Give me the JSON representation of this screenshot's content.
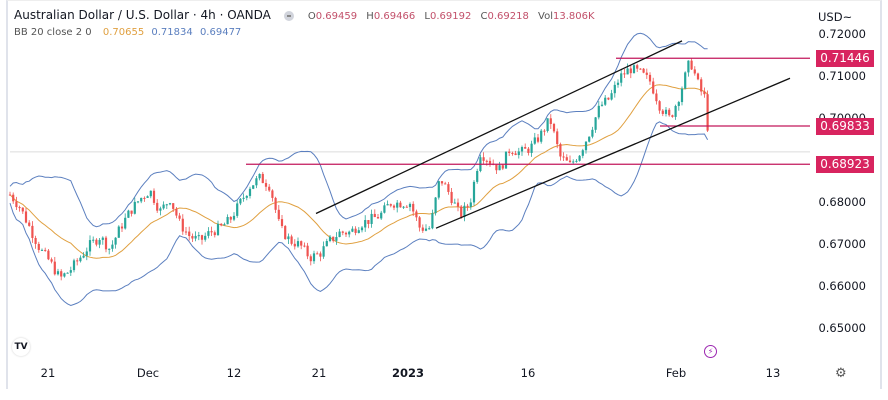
{
  "header": {
    "title": "Australian Dollar / U.S. Dollar · 4h · OANDA",
    "ohlc": {
      "o_label": "O",
      "o": "0.69459",
      "h_label": "H",
      "h": "0.69466",
      "l_label": "L",
      "l": "0.69192",
      "c_label": "C",
      "c": "0.69218",
      "vol_label": "Vol",
      "vol": "13.806K"
    },
    "indicator": {
      "label": "BB 20 close 2 0",
      "basis": "0.70655",
      "upper": "0.71834",
      "lower": "0.69477"
    }
  },
  "y_axis": {
    "currency": "USD~",
    "ticks": [
      {
        "label": "0.72000",
        "value": 0.72
      },
      {
        "label": "0.71000",
        "value": 0.71
      },
      {
        "label": "0.70000",
        "value": 0.7
      },
      {
        "label": "0.68000",
        "value": 0.68
      },
      {
        "label": "0.67000",
        "value": 0.67
      },
      {
        "label": "0.66000",
        "value": 0.66
      },
      {
        "label": "0.65000",
        "value": 0.65
      }
    ],
    "price_tags": [
      {
        "label": "0.71446",
        "value": 0.71446
      },
      {
        "label": "0.69833",
        "value": 0.69833
      },
      {
        "label": "0.68923",
        "value": 0.68923
      }
    ]
  },
  "x_axis": {
    "ticks": [
      {
        "label": "21",
        "x": 48,
        "bold": false
      },
      {
        "label": "Dec",
        "x": 148,
        "bold": false
      },
      {
        "label": "12",
        "x": 234,
        "bold": false
      },
      {
        "label": "21",
        "x": 319,
        "bold": false
      },
      {
        "label": "2023",
        "x": 408,
        "bold": true
      },
      {
        "label": "16",
        "x": 528,
        "bold": false
      },
      {
        "label": "Feb",
        "x": 676,
        "bold": false
      },
      {
        "label": "13",
        "x": 773,
        "bold": false
      }
    ]
  },
  "icons": {
    "tv_logo": "TV",
    "flash": "⚡",
    "gear": "⚙"
  },
  "colors": {
    "up": "#26a69a",
    "down": "#ef5350",
    "basis": "#e0a040",
    "band": "#5b7fbf",
    "level": "#c2185b",
    "tag": "#d8245f",
    "channel": "#111111"
  },
  "chart_data": {
    "type": "candlestick",
    "title": "Australian Dollar / U.S. Dollar · 4h · OANDA",
    "xlabel": "",
    "ylabel": "USD",
    "ylim": [
      0.645,
      0.724
    ],
    "x_ticks": [
      "21",
      "Dec",
      "12",
      "21",
      "2023",
      "16",
      "Feb",
      "13"
    ],
    "indicator": "Bollinger Bands (20, 2)",
    "price_path": [
      [
        10,
        0.682
      ],
      [
        20,
        0.679
      ],
      [
        30,
        0.674
      ],
      [
        40,
        0.669
      ],
      [
        50,
        0.666
      ],
      [
        60,
        0.662
      ],
      [
        70,
        0.664
      ],
      [
        80,
        0.667
      ],
      [
        90,
        0.67
      ],
      [
        100,
        0.672
      ],
      [
        110,
        0.669
      ],
      [
        120,
        0.674
      ],
      [
        130,
        0.678
      ],
      [
        140,
        0.681
      ],
      [
        150,
        0.683
      ],
      [
        160,
        0.678
      ],
      [
        170,
        0.681
      ],
      [
        180,
        0.675
      ],
      [
        190,
        0.672
      ],
      [
        200,
        0.671
      ],
      [
        210,
        0.673
      ],
      [
        220,
        0.674
      ],
      [
        230,
        0.676
      ],
      [
        240,
        0.68
      ],
      [
        250,
        0.684
      ],
      [
        260,
        0.686
      ],
      [
        270,
        0.684
      ],
      [
        280,
        0.674
      ],
      [
        290,
        0.671
      ],
      [
        300,
        0.67
      ],
      [
        310,
        0.667
      ],
      [
        320,
        0.668
      ],
      [
        330,
        0.671
      ],
      [
        340,
        0.673
      ],
      [
        350,
        0.673
      ],
      [
        360,
        0.675
      ],
      [
        370,
        0.676
      ],
      [
        380,
        0.677
      ],
      [
        390,
        0.68
      ],
      [
        400,
        0.68
      ],
      [
        410,
        0.68
      ],
      [
        420,
        0.674
      ],
      [
        430,
        0.674
      ],
      [
        440,
        0.686
      ],
      [
        450,
        0.682
      ],
      [
        460,
        0.677
      ],
      [
        470,
        0.68
      ],
      [
        480,
        0.692
      ],
      [
        490,
        0.69
      ],
      [
        500,
        0.688
      ],
      [
        510,
        0.693
      ],
      [
        520,
        0.692
      ],
      [
        530,
        0.693
      ],
      [
        540,
        0.696
      ],
      [
        550,
        0.7
      ],
      [
        560,
        0.691
      ],
      [
        570,
        0.689
      ],
      [
        580,
        0.692
      ],
      [
        590,
        0.697
      ],
      [
        600,
        0.703
      ],
      [
        610,
        0.705
      ],
      [
        620,
        0.71
      ],
      [
        630,
        0.712
      ],
      [
        640,
        0.711
      ],
      [
        650,
        0.709
      ],
      [
        660,
        0.703
      ],
      [
        670,
        0.7
      ],
      [
        680,
        0.706
      ],
      [
        690,
        0.714
      ],
      [
        700,
        0.707
      ],
      [
        705,
        0.705
      ],
      [
        710,
        0.692
      ]
    ],
    "levels": [
      0.71446,
      0.69833,
      0.68923
    ],
    "channel": {
      "upper": [
        [
          316,
          0.6775
        ],
        [
          682,
          0.7186
        ]
      ],
      "lower": [
        [
          436,
          0.674
        ],
        [
          790,
          0.7097
        ]
      ]
    },
    "last": {
      "open": 0.69459,
      "high": 0.69466,
      "low": 0.69192,
      "close": 0.69218
    },
    "bb": {
      "basis": 0.70655,
      "upper": 0.71834,
      "lower": 0.69477
    }
  }
}
